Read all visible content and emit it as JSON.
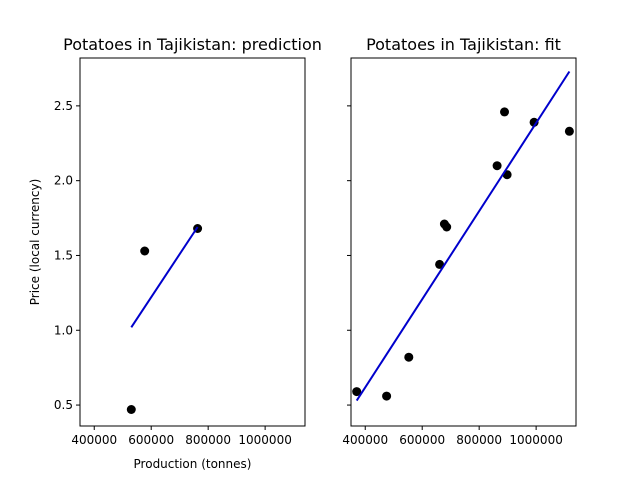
{
  "chart_data": [
    {
      "type": "scatter",
      "title": "Potatoes in Tajikistan: prediction",
      "xlabel": "Production (tonnes)",
      "ylabel": "Price (local currency)",
      "xlim": [
        350000,
        1140000
      ],
      "ylim": [
        0.36,
        2.82
      ],
      "xticks": [
        400000,
        600000,
        800000,
        1000000
      ],
      "xtick_labels": [
        "400000",
        "600000",
        "800000",
        "1000000"
      ],
      "yticks": [
        0.5,
        1.0,
        1.5,
        2.0,
        2.5
      ],
      "ytick_labels": [
        "0.5",
        "1.0",
        "1.5",
        "2.0",
        "2.5"
      ],
      "series": [
        {
          "kind": "points",
          "color": "#000000",
          "points": [
            [
              530000,
              0.47
            ],
            [
              577000,
              1.53
            ],
            [
              763000,
              1.68
            ]
          ]
        },
        {
          "kind": "line",
          "color": "#0000cc",
          "points": [
            [
              530000,
              1.02
            ],
            [
              763000,
              1.69
            ]
          ]
        }
      ]
    },
    {
      "type": "scatter",
      "title": "Potatoes in Tajikistan: fit",
      "xlabel": "",
      "ylabel": "",
      "xlim": [
        350000,
        1140000
      ],
      "ylim": [
        0.36,
        2.82
      ],
      "xticks": [
        400000,
        600000,
        800000,
        1000000
      ],
      "xtick_labels": [
        "400000",
        "600000",
        "800000",
        "1000000"
      ],
      "yticks": [
        0.5,
        1.0,
        1.5,
        2.0,
        2.5
      ],
      "ytick_labels": [],
      "series": [
        {
          "kind": "points",
          "color": "#000000",
          "points": [
            [
              370000,
              0.59
            ],
            [
              475000,
              0.56
            ],
            [
              553000,
              0.82
            ],
            [
              661000,
              1.44
            ],
            [
              678000,
              1.71
            ],
            [
              686000,
              1.69
            ],
            [
              863000,
              2.1
            ],
            [
              889000,
              2.46
            ],
            [
              898000,
              2.04
            ],
            [
              993000,
              2.39
            ],
            [
              1117000,
              2.33
            ]
          ]
        },
        {
          "kind": "line",
          "color": "#0000cc",
          "points": [
            [
              370000,
              0.53
            ],
            [
              1117000,
              2.73
            ]
          ]
        }
      ]
    }
  ]
}
